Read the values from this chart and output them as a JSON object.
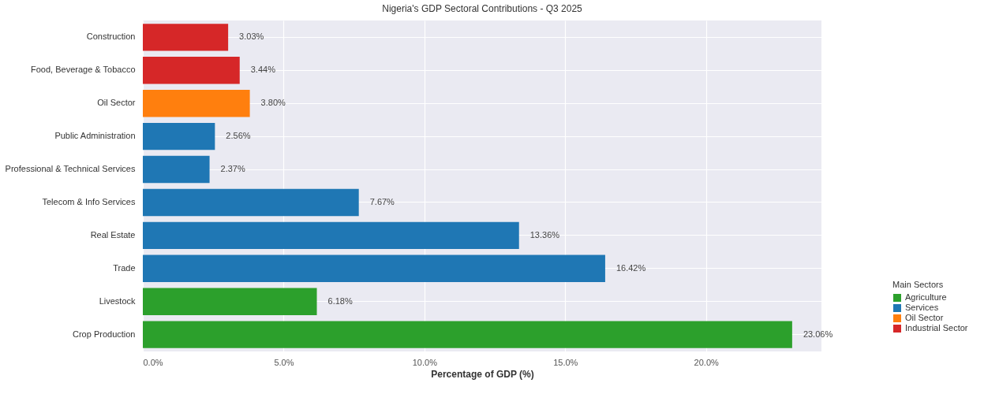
{
  "chart_data": {
    "type": "bar",
    "orientation": "horizontal",
    "title": "Nigeria's GDP Sectoral Contributions - Q3 2025",
    "xlabel": "Percentage of GDP (%)",
    "legend_title": "Main Sectors",
    "legend": "bottom right",
    "grid": true,
    "categories": [
      "Construction",
      "Food, Beverage & Tobacco",
      "Oil Sector",
      "Public Administration",
      "Professional & Technical Services",
      "Telecom & Info Services",
      "Real Estate",
      "Trade",
      "Livestock",
      "Crop Production"
    ],
    "series": [
      {
        "name": "Agriculture",
        "color": "#2ca02c",
        "values": [
          null,
          null,
          null,
          null,
          null,
          null,
          null,
          null,
          6.18,
          23.06
        ],
        "value_labels": [
          null,
          null,
          null,
          null,
          null,
          null,
          null,
          null,
          "6.18%",
          "23.06%"
        ]
      },
      {
        "name": "Services",
        "color": "#1f77b4",
        "values": [
          null,
          null,
          null,
          2.56,
          2.37,
          7.67,
          13.36,
          16.42,
          null,
          null
        ],
        "value_labels": [
          null,
          null,
          null,
          "2.56%",
          "2.37%",
          "7.67%",
          "13.36%",
          "16.42%",
          null,
          null
        ]
      },
      {
        "name": "Oil Sector",
        "color": "#ff7f0e",
        "values": [
          null,
          null,
          3.8,
          null,
          null,
          null,
          null,
          null,
          null,
          null
        ],
        "value_labels": [
          null,
          null,
          "3.80%",
          null,
          null,
          null,
          null,
          null,
          null,
          null
        ]
      },
      {
        "name": "Industrial Sector",
        "color": "#d62728",
        "values": [
          3.03,
          3.44,
          null,
          null,
          null,
          null,
          null,
          null,
          null,
          null
        ],
        "value_labels": [
          "3.03%",
          "3.44%",
          null,
          null,
          null,
          null,
          null,
          null,
          null,
          null
        ]
      }
    ],
    "xlim": [
      0,
      24.1
    ],
    "xticks": [
      {
        "value": 0,
        "label": "0.0%"
      },
      {
        "value": 5,
        "label": "5.0%"
      },
      {
        "value": 10,
        "label": "10.0%"
      },
      {
        "value": 15,
        "label": "15.0%"
      },
      {
        "value": 20,
        "label": "20.0%"
      }
    ]
  }
}
